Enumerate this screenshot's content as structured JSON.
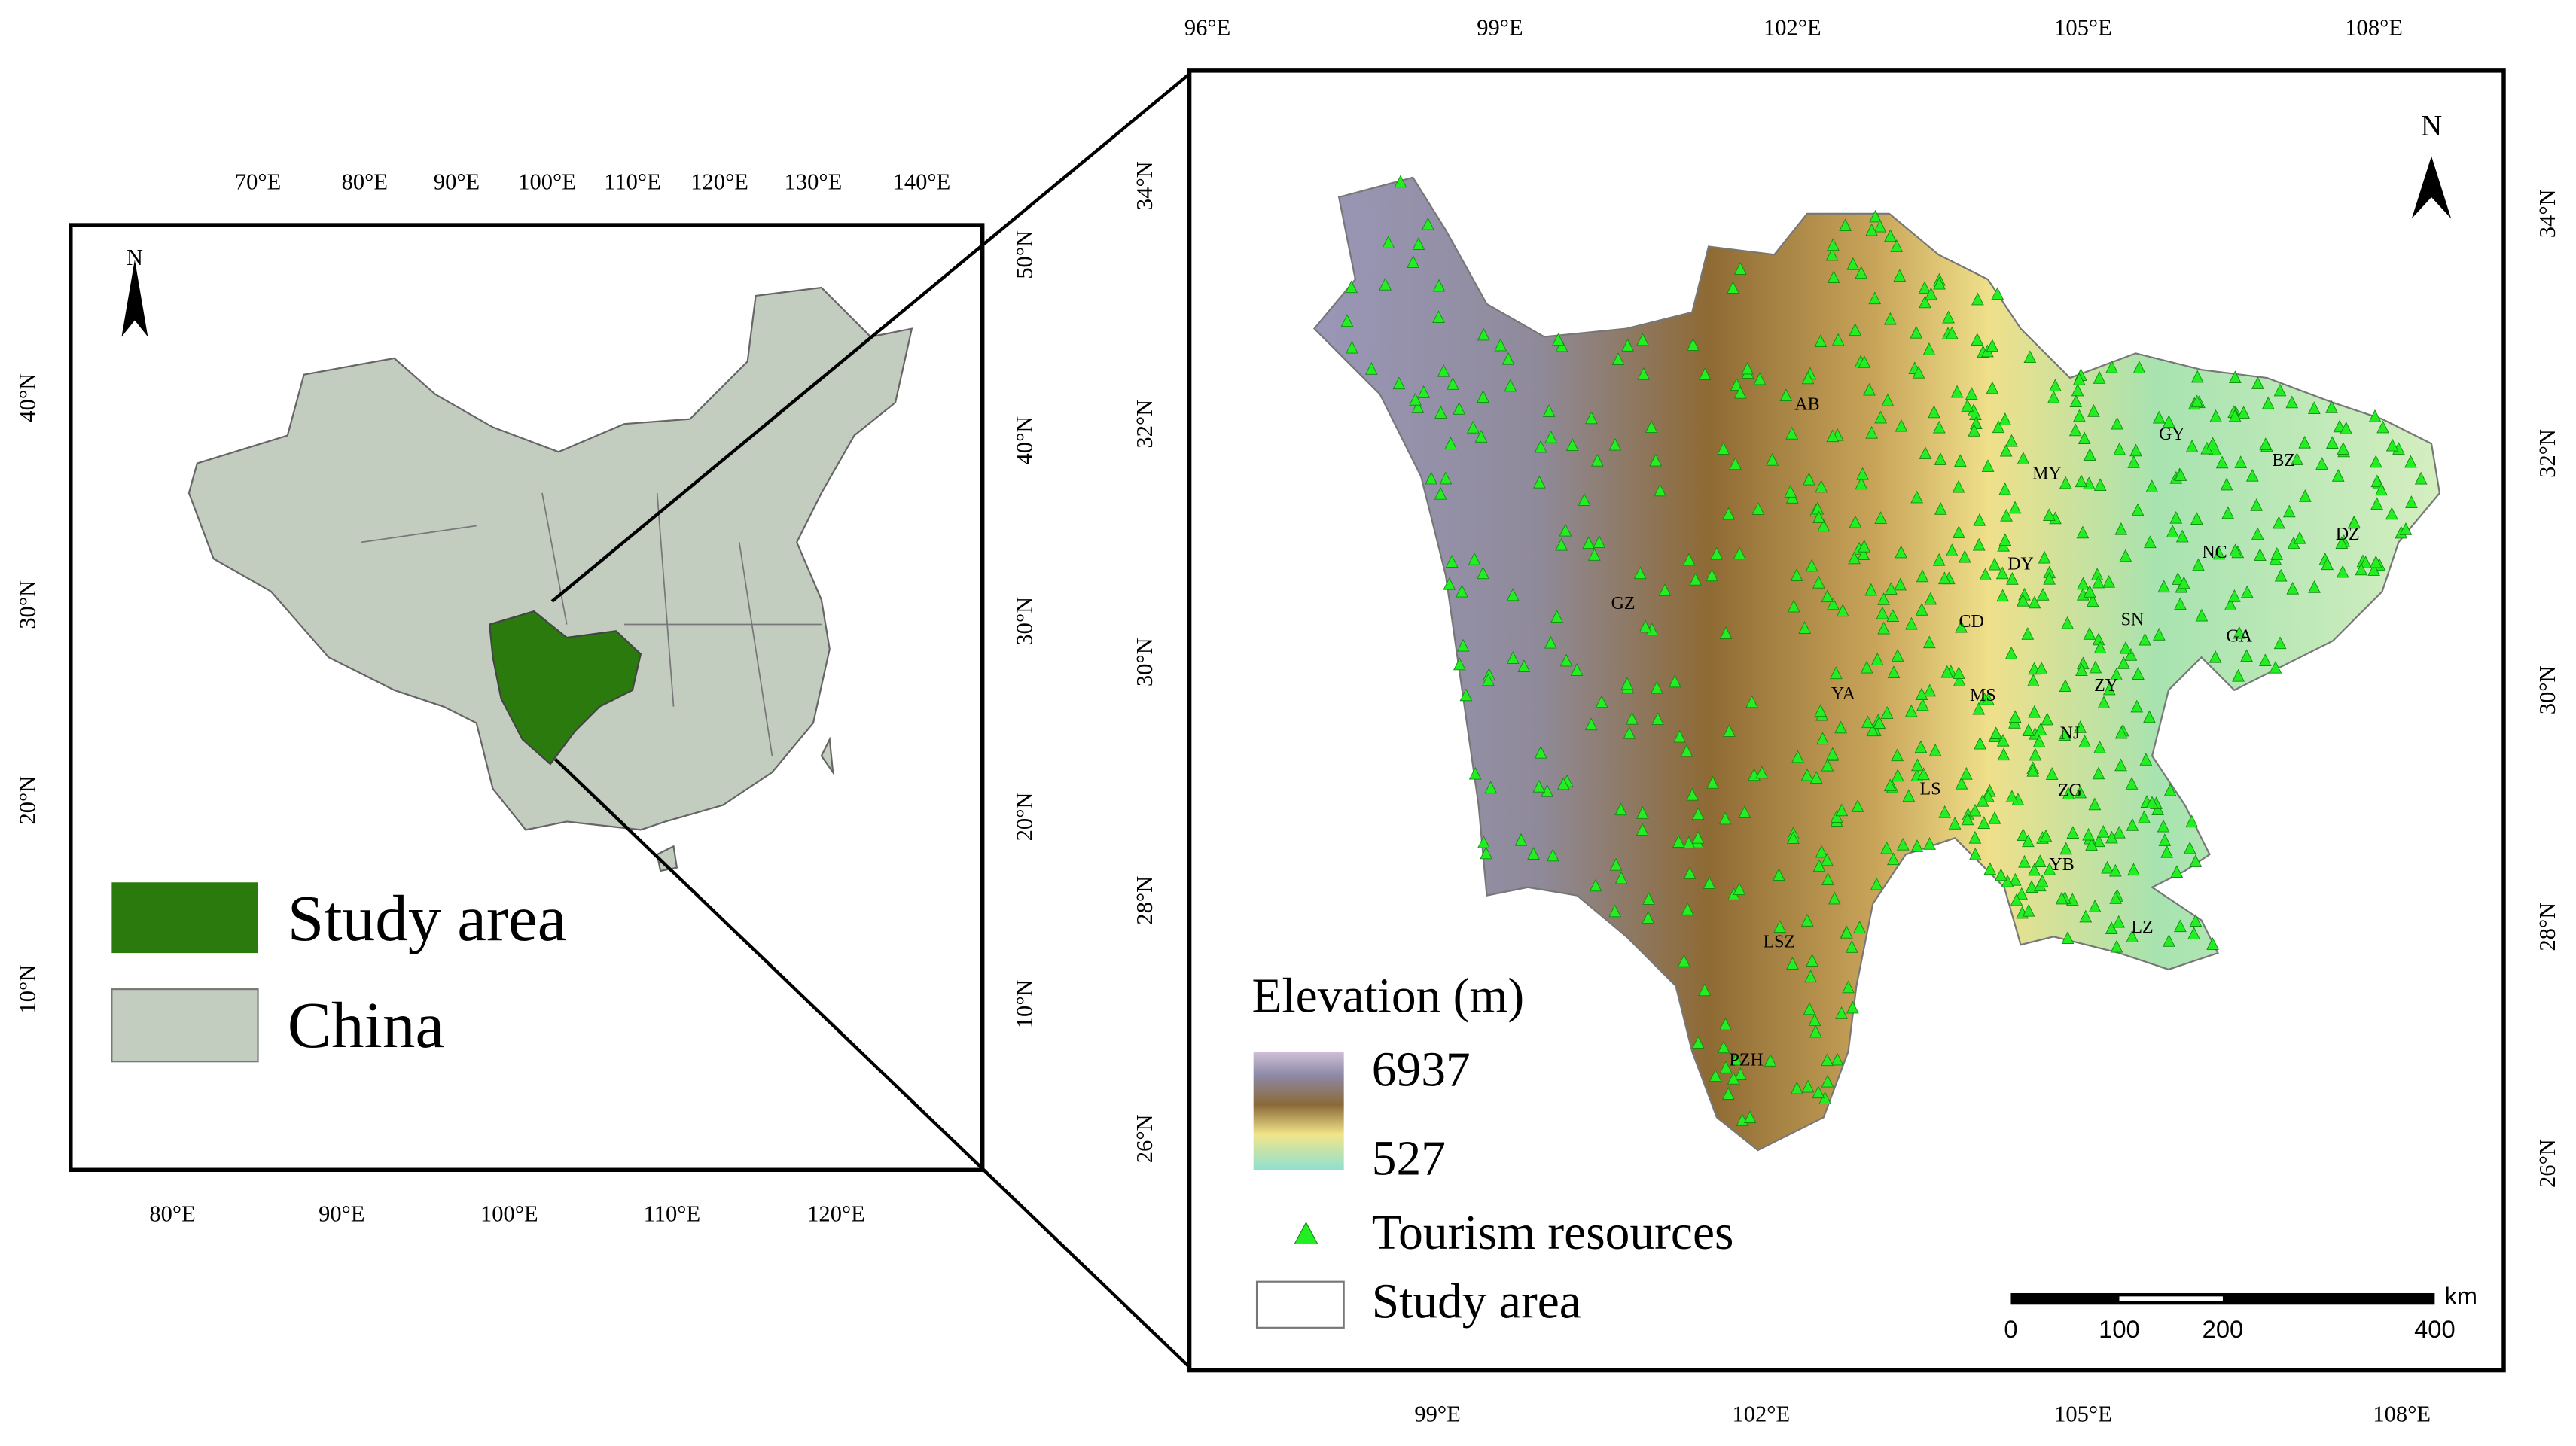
{
  "left_map": {
    "lon_top": [
      "70°E",
      "80°E",
      "90°E",
      "100°E",
      "110°E",
      "120°E",
      "130°E",
      "140°E"
    ],
    "lon_bottom": [
      "80°E",
      "90°E",
      "100°E",
      "110°E",
      "120°E"
    ],
    "lat_left": [
      "40°N",
      "30°N",
      "20°N",
      "10°N"
    ],
    "lat_right": [
      "50°N",
      "40°N",
      "30°N",
      "20°N",
      "10°N"
    ],
    "north": "N",
    "legend": {
      "study_area": "Study area",
      "china": "China"
    }
  },
  "right_map": {
    "lon_top": [
      "96°E",
      "99°E",
      "102°E",
      "105°E",
      "108°E"
    ],
    "lon_bottom": [
      "99°E",
      "102°E",
      "105°E",
      "108°E"
    ],
    "lat_left": [
      "34°N",
      "32°N",
      "30°N",
      "28°N",
      "26°N"
    ],
    "lat_right": [
      "34°N",
      "32°N",
      "30°N",
      "28°N",
      "26°N"
    ],
    "north": "N",
    "cities": [
      "AB",
      "GZ",
      "MY",
      "GY",
      "BZ",
      "DZ",
      "NC",
      "DY",
      "CD",
      "SN",
      "GA",
      "YA",
      "MS",
      "ZY",
      "NJ",
      "LS",
      "ZG",
      "YB",
      "LZ",
      "LSZ",
      "PZH"
    ],
    "legend": {
      "elevation_title": "Elevation (m)",
      "elevation_high": "6937",
      "elevation_low": "527",
      "tourism": "Tourism resources",
      "study_area": "Study area"
    },
    "scale_bar": {
      "unit": "km",
      "labels": [
        "0",
        "100",
        "200",
        "400"
      ]
    }
  }
}
